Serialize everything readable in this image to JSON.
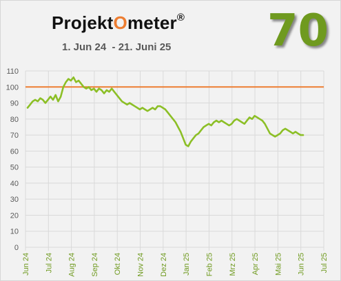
{
  "title_prefix": "Projekt",
  "title_o": "O",
  "title_suffix": "meter",
  "title_mark": "®",
  "subtitle": "1. Jun 24  - 21. Juni 25",
  "score": "70",
  "colors": {
    "series": "#8cbf26",
    "reference": "#ed7d31",
    "score": "#6f9a1f",
    "xtick": "#6f9a1f",
    "ytick": "#595959",
    "grid": "#d9d9d9"
  },
  "chart_data": {
    "type": "line",
    "ylim": [
      0,
      110
    ],
    "yticks": [
      0,
      10,
      20,
      30,
      40,
      50,
      60,
      70,
      80,
      90,
      100,
      110
    ],
    "xtick_labels": [
      "Jun 24",
      "Jul 24",
      "Aug 24",
      "Sep 24",
      "Okt 24",
      "Nov 24",
      "Dez 24",
      "Jan 25",
      "Feb 25",
      "Mrz 25",
      "Apr 25",
      "Mai 25",
      "Jun 25",
      "Jul 25"
    ],
    "reference_line": 100,
    "series": [
      {
        "values": [
          87,
          89,
          91,
          92,
          91,
          93,
          92,
          90,
          92,
          94,
          92,
          95,
          91,
          94,
          100,
          103,
          105,
          104,
          106,
          103,
          104,
          102,
          100,
          99,
          100,
          98,
          99,
          97,
          99,
          98,
          96,
          98,
          97,
          99,
          97,
          95,
          93,
          91,
          90,
          89,
          90,
          89,
          88,
          87,
          86,
          87,
          86,
          85,
          86,
          87,
          86,
          88,
          88,
          87,
          86,
          84,
          82,
          80,
          78,
          75,
          72,
          68,
          64,
          63,
          66,
          68,
          70,
          71,
          73,
          75,
          76,
          77,
          76,
          78,
          79,
          78,
          79,
          78,
          77,
          76,
          77,
          79,
          80,
          79,
          78,
          77,
          79,
          81,
          80,
          82,
          81,
          80,
          79,
          77,
          74,
          71,
          70,
          69,
          70,
          71,
          73,
          74,
          73,
          72,
          71,
          72,
          71,
          70,
          70
        ]
      }
    ]
  }
}
